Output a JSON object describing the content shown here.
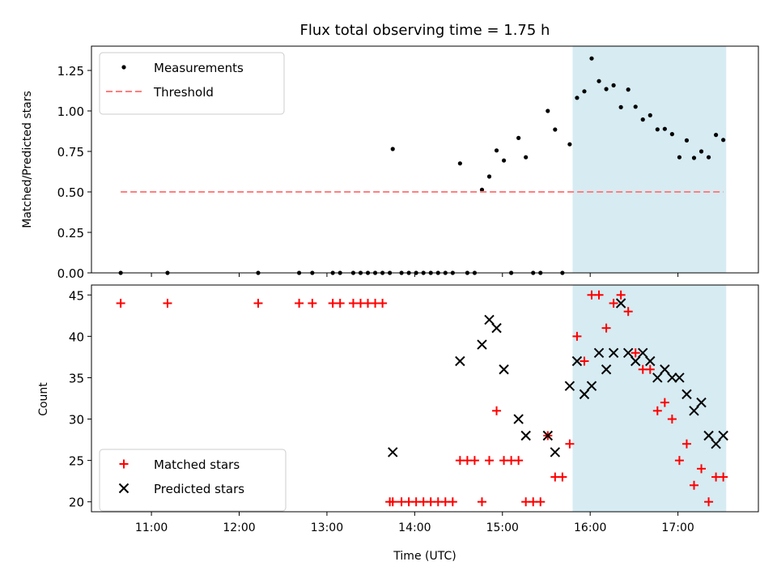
{
  "chart_data": {
    "title": "Flux total observing time = 1.75 h",
    "xlabel": "Time (UTC)",
    "x_axis": {
      "type": "time",
      "xlim": [
        "10:19",
        "17:55"
      ],
      "ticks": [
        "11:00",
        "12:00",
        "13:00",
        "14:00",
        "15:00",
        "16:00",
        "17:00"
      ]
    },
    "shaded_region": {
      "x_start": "15:48",
      "x_end": "17:33",
      "color": "#add8e6",
      "alpha": 0.5
    },
    "panels": [
      {
        "type": "scatter",
        "ylabel": "Matched/Predicted stars",
        "ylim": [
          0,
          1.4
        ],
        "yticks": [
          "0.00",
          "0.25",
          "0.50",
          "0.75",
          "1.00",
          "1.25"
        ],
        "legend_position": "upper left",
        "series": [
          {
            "name": "Measurements",
            "marker": "dot",
            "color": "#000000",
            "points": [
              [
                "10:39",
                0.0
              ],
              [
                "11:11",
                0.0
              ],
              [
                "12:13",
                0.0
              ],
              [
                "12:41",
                0.0
              ],
              [
                "12:50",
                0.0
              ],
              [
                "13:04",
                0.0
              ],
              [
                "13:09",
                0.0
              ],
              [
                "13:18",
                0.0
              ],
              [
                "13:23",
                0.0
              ],
              [
                "13:28",
                0.0
              ],
              [
                "13:33",
                0.0
              ],
              [
                "13:38",
                0.0
              ],
              [
                "13:43",
                0.0
              ],
              [
                "13:45",
                0.765
              ],
              [
                "13:51",
                0.0
              ],
              [
                "13:56",
                0.0
              ],
              [
                "14:01",
                0.0
              ],
              [
                "14:06",
                0.0
              ],
              [
                "14:11",
                0.0
              ],
              [
                "14:16",
                0.0
              ],
              [
                "14:21",
                0.0
              ],
              [
                "14:26",
                0.0
              ],
              [
                "14:31",
                0.676
              ],
              [
                "14:36",
                0.0
              ],
              [
                "14:41",
                0.0
              ],
              [
                "14:46",
                0.513
              ],
              [
                "14:51",
                0.595
              ],
              [
                "14:56",
                0.756
              ],
              [
                "15:01",
                0.694
              ],
              [
                "15:06",
                0.0
              ],
              [
                "15:11",
                0.833
              ],
              [
                "15:16",
                0.714
              ],
              [
                "15:21",
                0.0
              ],
              [
                "15:26",
                0.0
              ],
              [
                "15:31",
                1.0
              ],
              [
                "15:36",
                0.885
              ],
              [
                "15:41",
                0.0
              ],
              [
                "15:46",
                0.794
              ],
              [
                "15:51",
                1.081
              ],
              [
                "15:56",
                1.121
              ],
              [
                "16:01",
                1.324
              ],
              [
                "16:06",
                1.184
              ],
              [
                "16:11",
                1.135
              ],
              [
                "16:16",
                1.158
              ],
              [
                "16:21",
                1.023
              ],
              [
                "16:26",
                1.132
              ],
              [
                "16:31",
                1.026
              ],
              [
                "16:36",
                0.947
              ],
              [
                "16:41",
                0.973
              ],
              [
                "16:46",
                0.886
              ],
              [
                "16:51",
                0.889
              ],
              [
                "16:56",
                0.857
              ],
              [
                "17:01",
                0.714
              ],
              [
                "17:06",
                0.818
              ],
              [
                "17:11",
                0.71
              ],
              [
                "17:16",
                0.75
              ],
              [
                "17:21",
                0.714
              ],
              [
                "17:26",
                0.852
              ],
              [
                "17:31",
                0.821
              ]
            ]
          },
          {
            "name": "Threshold",
            "type": "line",
            "style": "dashed",
            "color": "#ff7f7f",
            "points": [
              [
                "10:39",
                0.5
              ],
              [
                "17:31",
                0.5
              ]
            ]
          }
        ]
      },
      {
        "type": "scatter",
        "ylabel": "Count",
        "ylim": [
          18.8,
          46.2
        ],
        "yticks": [
          "20",
          "25",
          "30",
          "35",
          "40",
          "45"
        ],
        "legend_position": "lower left",
        "series": [
          {
            "name": "Matched stars",
            "marker": "plus",
            "color": "#ff0000",
            "points": [
              [
                "10:39",
                44
              ],
              [
                "11:11",
                44
              ],
              [
                "12:13",
                44
              ],
              [
                "12:41",
                44
              ],
              [
                "12:50",
                44
              ],
              [
                "13:04",
                44
              ],
              [
                "13:09",
                44
              ],
              [
                "13:18",
                44
              ],
              [
                "13:23",
                44
              ],
              [
                "13:28",
                44
              ],
              [
                "13:33",
                44
              ],
              [
                "13:38",
                44
              ],
              [
                "13:43",
                20
              ],
              [
                "13:45",
                20
              ],
              [
                "13:51",
                20
              ],
              [
                "13:56",
                20
              ],
              [
                "14:01",
                20
              ],
              [
                "14:06",
                20
              ],
              [
                "14:11",
                20
              ],
              [
                "14:16",
                20
              ],
              [
                "14:21",
                20
              ],
              [
                "14:26",
                20
              ],
              [
                "14:31",
                25
              ],
              [
                "14:36",
                25
              ],
              [
                "14:41",
                25
              ],
              [
                "14:46",
                20
              ],
              [
                "14:51",
                25
              ],
              [
                "14:56",
                31
              ],
              [
                "15:01",
                25
              ],
              [
                "15:06",
                25
              ],
              [
                "15:11",
                25
              ],
              [
                "15:16",
                20
              ],
              [
                "15:21",
                20
              ],
              [
                "15:26",
                20
              ],
              [
                "15:31",
                28
              ],
              [
                "15:36",
                23
              ],
              [
                "15:41",
                23
              ],
              [
                "15:46",
                27
              ],
              [
                "15:51",
                40
              ],
              [
                "15:56",
                37
              ],
              [
                "16:01",
                45
              ],
              [
                "16:06",
                45
              ],
              [
                "16:11",
                41
              ],
              [
                "16:16",
                44
              ],
              [
                "16:21",
                45
              ],
              [
                "16:26",
                43
              ],
              [
                "16:31",
                38
              ],
              [
                "16:36",
                36
              ],
              [
                "16:41",
                36
              ],
              [
                "16:46",
                31
              ],
              [
                "16:51",
                32
              ],
              [
                "16:56",
                30
              ],
              [
                "17:01",
                25
              ],
              [
                "17:06",
                27
              ],
              [
                "17:11",
                22
              ],
              [
                "17:16",
                24
              ],
              [
                "17:21",
                20
              ],
              [
                "17:26",
                23
              ],
              [
                "17:31",
                23
              ]
            ]
          },
          {
            "name": "Predicted stars",
            "marker": "x",
            "color": "#000000",
            "points": [
              [
                "13:45",
                26
              ],
              [
                "14:31",
                37
              ],
              [
                "14:46",
                39
              ],
              [
                "14:51",
                42
              ],
              [
                "14:56",
                41
              ],
              [
                "15:01",
                36
              ],
              [
                "15:11",
                30
              ],
              [
                "15:16",
                28
              ],
              [
                "15:31",
                28
              ],
              [
                "15:36",
                26
              ],
              [
                "15:46",
                34
              ],
              [
                "15:51",
                37
              ],
              [
                "15:56",
                33
              ],
              [
                "16:01",
                34
              ],
              [
                "16:06",
                38
              ],
              [
                "16:11",
                36
              ],
              [
                "16:16",
                38
              ],
              [
                "16:21",
                44
              ],
              [
                "16:26",
                38
              ],
              [
                "16:31",
                37
              ],
              [
                "16:36",
                38
              ],
              [
                "16:41",
                37
              ],
              [
                "16:46",
                35
              ],
              [
                "16:51",
                36
              ],
              [
                "16:56",
                35
              ],
              [
                "17:01",
                35
              ],
              [
                "17:06",
                33
              ],
              [
                "17:11",
                31
              ],
              [
                "17:16",
                32
              ],
              [
                "17:21",
                28
              ],
              [
                "17:26",
                27
              ],
              [
                "17:31",
                28
              ]
            ]
          }
        ]
      }
    ]
  }
}
